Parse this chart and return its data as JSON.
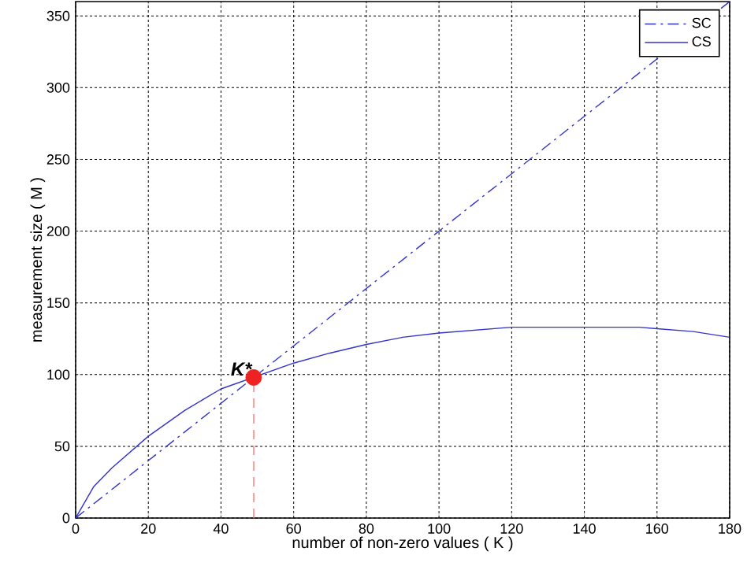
{
  "chart_data": {
    "type": "line",
    "xlabel": "number of non-zero values ( K )",
    "ylabel": "measurement size ( M )",
    "xlim": [
      0,
      180
    ],
    "ylim": [
      0,
      360
    ],
    "xticks": [
      0,
      20,
      40,
      60,
      80,
      100,
      120,
      140,
      160,
      180
    ],
    "yticks": [
      0,
      50,
      100,
      150,
      200,
      250,
      300,
      350
    ],
    "grid": true,
    "legend": "top right",
    "series": [
      {
        "name": "SC",
        "color": "#3333cc",
        "line_style": "dashdot",
        "x": [
          0,
          180
        ],
        "values": [
          0,
          360
        ]
      },
      {
        "name": "CS",
        "color": "#3333cc",
        "line_style": "solid",
        "x": [
          0,
          5,
          10,
          20,
          30,
          40,
          60,
          70,
          80,
          90,
          100,
          110,
          120,
          130,
          140,
          150,
          155,
          160,
          170,
          180
        ],
        "values": [
          0,
          22,
          35,
          57,
          75,
          90,
          108,
          115,
          121,
          126,
          129,
          131,
          133,
          133,
          133,
          133,
          133,
          132,
          130,
          126
        ]
      },
      {
        "type": "line",
        "color": "#ff6666",
        "line_style": "dashed",
        "x": [
          49,
          49
        ],
        "values": [
          0,
          98
        ]
      },
      {
        "type": "scatter",
        "color": "#ee2222",
        "marker": "circle",
        "x": [
          49
        ],
        "values": [
          98
        ]
      }
    ],
    "annotations": [
      {
        "text": "K*",
        "x": 49,
        "y": 98
      }
    ]
  }
}
